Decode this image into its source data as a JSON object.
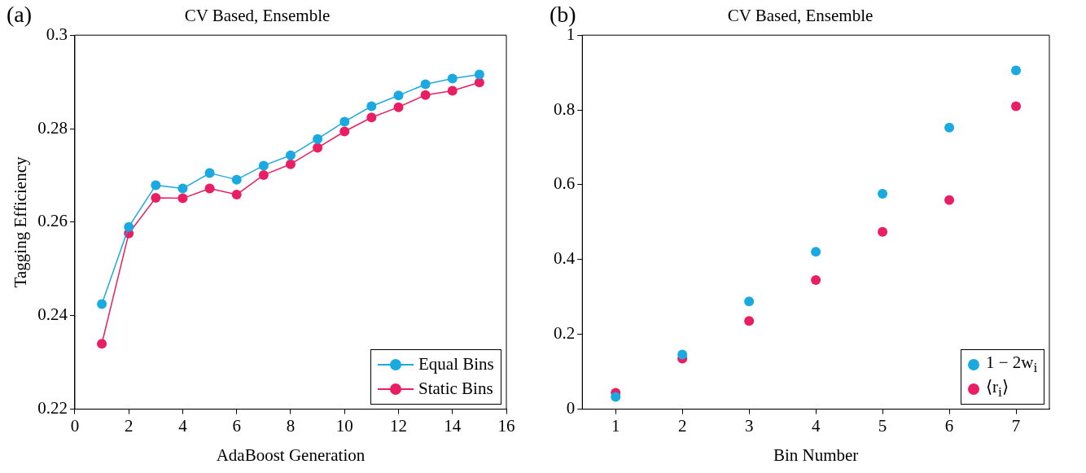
{
  "chart_data": [
    {
      "type": "line",
      "title": "CV Based, Ensemble",
      "xlabel": "AdaBoost Generation",
      "ylabel": "Tagging Efficiency",
      "annotations": [
        "(a)"
      ],
      "x": [
        1,
        2,
        3,
        4,
        5,
        6,
        7,
        8,
        9,
        10,
        11,
        12,
        13,
        14,
        15
      ],
      "xlim": [
        0,
        16
      ],
      "xticks": [
        0,
        2,
        4,
        6,
        8,
        10,
        12,
        14,
        16
      ],
      "ylim": [
        0.22,
        0.3
      ],
      "yticks": [
        0.22,
        0.24,
        0.26,
        0.28,
        0.3
      ],
      "marker": "circle",
      "legend": "bottom right",
      "series": [
        {
          "name": "Equal Bins",
          "color": "#1ba9e1",
          "values": [
            0.2425,
            0.259,
            0.2679,
            0.2672,
            0.2705,
            0.2691,
            0.2721,
            0.2743,
            0.2778,
            0.2815,
            0.2848,
            0.2871,
            0.2895,
            0.2907,
            0.2916
          ]
        },
        {
          "name": "Static Bins",
          "color": "#e91e63",
          "values": [
            0.234,
            0.2576,
            0.2652,
            0.2651,
            0.2672,
            0.2659,
            0.2701,
            0.2724,
            0.2759,
            0.2794,
            0.2824,
            0.2846,
            0.2872,
            0.2881,
            0.2899
          ]
        }
      ]
    },
    {
      "type": "scatter",
      "title": "CV Based, Ensemble",
      "xlabel": "Bin Number",
      "annotations": [
        "(b)"
      ],
      "categories": [
        "1",
        "2",
        "3",
        "4",
        "5",
        "6",
        "7"
      ],
      "ylim": [
        0,
        1
      ],
      "yticks": [
        0,
        0.2,
        0.4,
        0.6,
        0.8,
        1
      ],
      "marker": "circle",
      "legend": "bottom right",
      "series": [
        {
          "name": "1 − 2w$_{i}$",
          "color": "#1ba9e1",
          "values": [
            0.033,
            0.146,
            0.288,
            0.421,
            0.576,
            0.753,
            0.906
          ]
        },
        {
          "name": "⟨r$_{i}$⟩",
          "color": "#e91e63",
          "values": [
            0.044,
            0.135,
            0.236,
            0.345,
            0.474,
            0.559,
            0.81
          ]
        }
      ]
    }
  ]
}
